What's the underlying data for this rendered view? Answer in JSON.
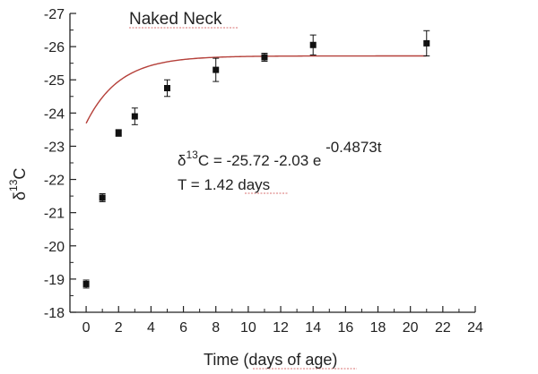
{
  "chart_data": {
    "type": "scatter",
    "title": "Naked Neck",
    "xlabel": "Time (days of age)",
    "ylabel_main": "δ",
    "ylabel_sup": "13",
    "ylabel_tail": "C",
    "xlim": [
      -1,
      24
    ],
    "ylim": [
      -18,
      -27
    ],
    "x_ticks": [
      0,
      2,
      4,
      6,
      8,
      10,
      12,
      14,
      16,
      18,
      20,
      22,
      24
    ],
    "y_ticks": [
      -18,
      -19,
      -20,
      -21,
      -22,
      -23,
      -24,
      -25,
      -26,
      -27
    ],
    "points": [
      {
        "x": 0,
        "y": -18.85,
        "err": 0.12
      },
      {
        "x": 1,
        "y": -21.45,
        "err": 0.12
      },
      {
        "x": 2,
        "y": -23.4,
        "err": 0.1
      },
      {
        "x": 3,
        "y": -23.9,
        "err": 0.25
      },
      {
        "x": 5,
        "y": -24.75,
        "err": 0.25
      },
      {
        "x": 8,
        "y": -25.3,
        "err": 0.35
      },
      {
        "x": 11,
        "y": -25.68,
        "err": 0.12
      },
      {
        "x": 14,
        "y": -26.05,
        "err": 0.3
      },
      {
        "x": 21,
        "y": -26.1,
        "err": 0.38
      }
    ],
    "fit": {
      "a": -25.72,
      "b": -2.03,
      "k": 0.4873,
      "color": "#b5403a"
    },
    "equation": {
      "delta": "δ",
      "sup13": "13",
      "lhs_tail": "C = -25.72 -2.03 e",
      "exponent": " -0.4873t"
    },
    "t_label": "T = 1.42 days",
    "marker_color": "#111111",
    "grid": false
  }
}
